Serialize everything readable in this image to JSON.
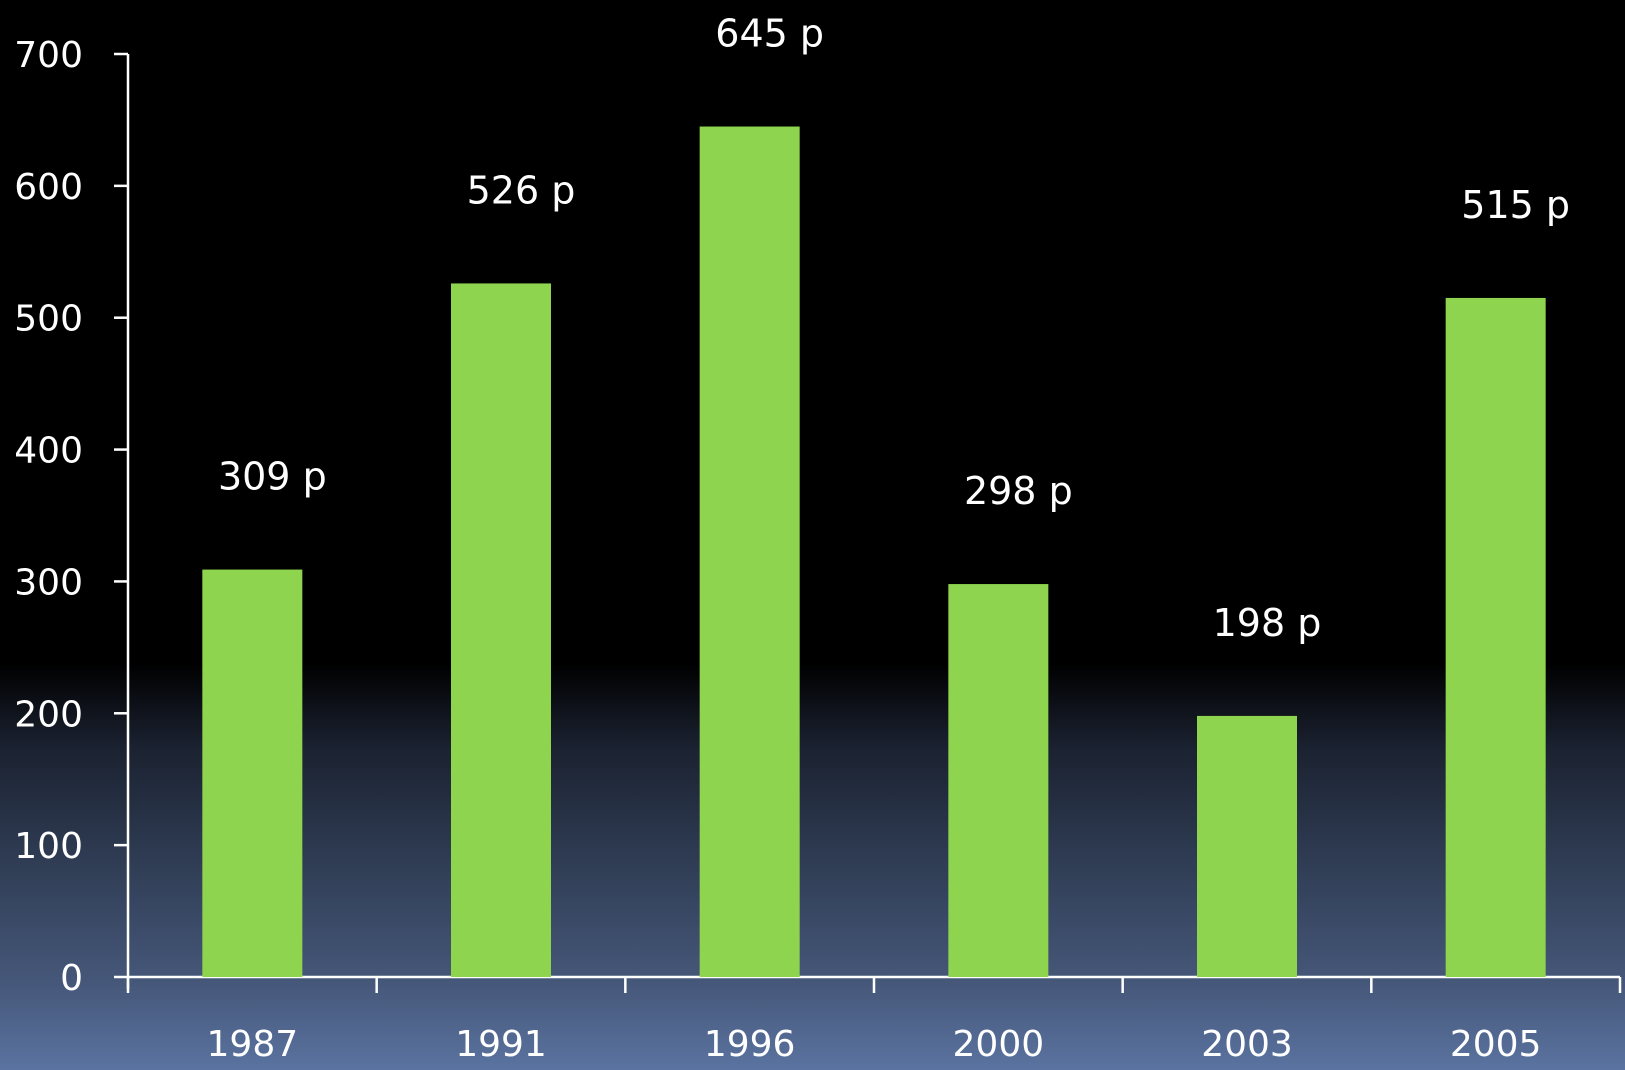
{
  "chart_data": {
    "type": "bar",
    "categories": [
      "1987",
      "1991",
      "1996",
      "2000",
      "2003",
      "2005"
    ],
    "values": [
      309,
      526,
      645,
      298,
      198,
      515
    ],
    "data_labels": [
      "309 p",
      "526 p",
      "645 p",
      "298 p",
      "198 p",
      "515 p"
    ],
    "title": "",
    "xlabel": "",
    "ylabel": "",
    "ylim": [
      0,
      700
    ],
    "yticks": [
      0,
      100,
      200,
      300,
      400,
      500,
      600,
      700
    ],
    "grid": false,
    "legend": "none",
    "colors": {
      "bar": "#8fd44e",
      "axis": "#ffffff",
      "text": "#ffffff"
    }
  }
}
